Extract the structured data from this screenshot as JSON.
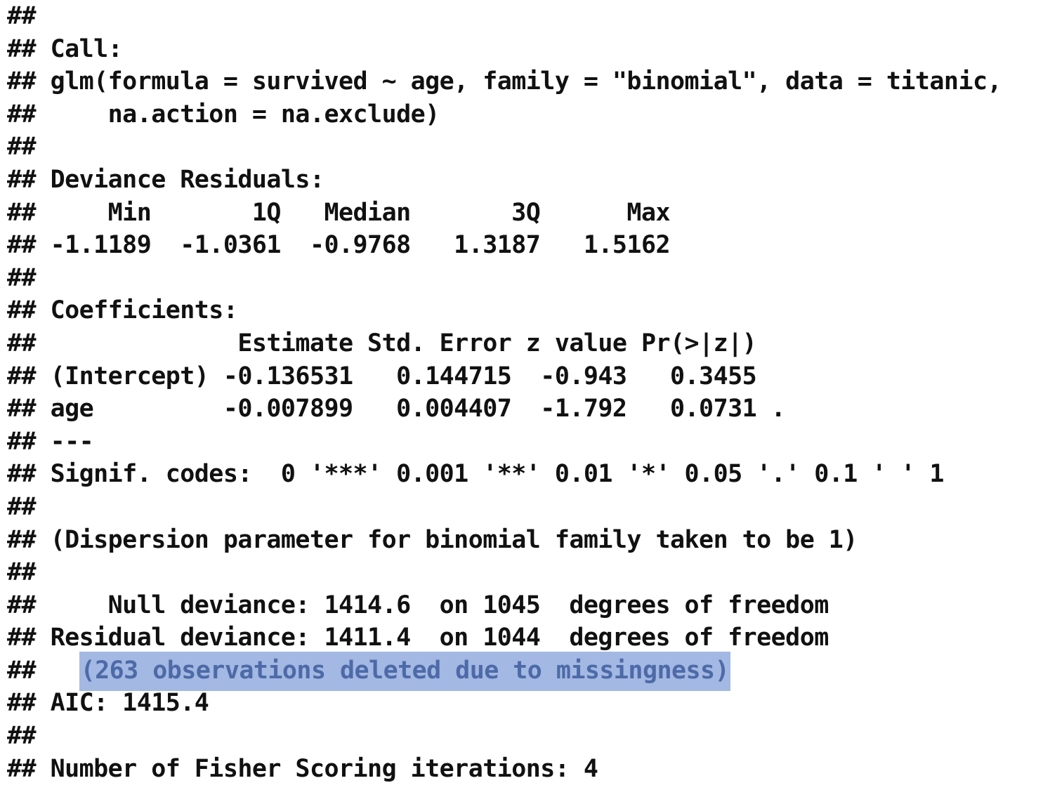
{
  "output": {
    "lines": [
      "##",
      "## Call:",
      "## glm(formula = survived ~ age, family = \"binomial\", data = titanic,",
      "##     na.action = na.exclude)",
      "##",
      "## Deviance Residuals:",
      "##     Min       1Q   Median       3Q      Max",
      "## -1.1189  -1.0361  -0.9768   1.3187   1.5162",
      "##",
      "## Coefficients:",
      "##              Estimate Std. Error z value Pr(>|z|)",
      "## (Intercept) -0.136531   0.144715  -0.943   0.3455",
      "## age         -0.007899   0.004407  -1.792   0.0731 .",
      "## ---",
      "## Signif. codes:  0 '***' 0.001 '**' 0.01 '*' 0.05 '.' 0.1 ' ' 1",
      "##",
      "## (Dispersion parameter for binomial family taken to be 1)",
      "##",
      "##     Null deviance: 1414.6  on 1045  degrees of freedom",
      "## Residual deviance: 1411.4  on 1044  degrees of freedom",
      "##   ",
      "## AIC: 1415.4",
      "##",
      "## Number of Fisher Scoring iterations: 4"
    ],
    "highlighted_text": "(263 observations deleted due to missingness)"
  },
  "colors": {
    "text": "#111111",
    "highlight_background": "#a3b8e2",
    "highlight_text": "#4d6aa8"
  }
}
